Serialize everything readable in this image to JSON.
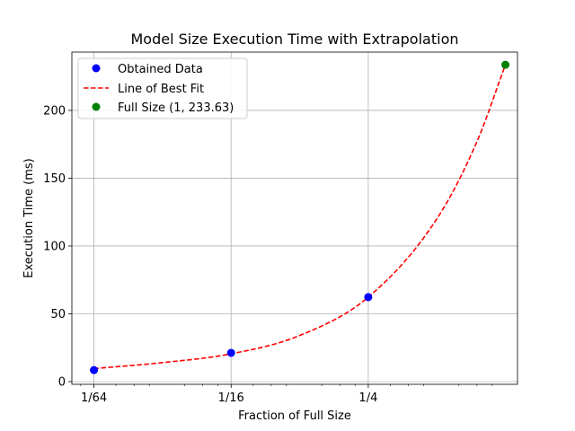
{
  "chart_data": {
    "type": "scatter",
    "title": "Model Size Execution Time with Extrapolation",
    "xlabel": "Fraction of Full Size",
    "ylabel": "Execution Time (ms)",
    "x_scale": "log2",
    "xlim": [
      0.0125,
      1.13
    ],
    "ylim": [
      -2,
      243
    ],
    "grid": true,
    "legend_position": "top-left",
    "xticks": [
      {
        "value": 0.015625,
        "label": "1/64"
      },
      {
        "value": 0.0625,
        "label": "1/16"
      },
      {
        "value": 0.25,
        "label": "1/4"
      }
    ],
    "yticks": [
      {
        "value": 0,
        "label": "0"
      },
      {
        "value": 50,
        "label": "50"
      },
      {
        "value": 100,
        "label": "100"
      },
      {
        "value": 150,
        "label": "150"
      },
      {
        "value": 200,
        "label": "200"
      }
    ],
    "series": [
      {
        "name": "Obtained Data",
        "kind": "scatter",
        "color": "#0000ff",
        "x": [
          0.015625,
          0.0625,
          0.25
        ],
        "y": [
          8.5,
          21.2,
          62.3
        ]
      },
      {
        "name": "Line of Best Fit",
        "kind": "line",
        "style": "dashed",
        "color": "#ff0000",
        "x": [
          0.015625,
          0.03125,
          0.0625,
          0.125,
          0.25,
          0.5,
          0.75,
          1
        ],
        "y": [
          9.6,
          14.0,
          20.5,
          34.0,
          62.3,
          120.0,
          177.0,
          233.63
        ]
      },
      {
        "name": "Full Size (1, 233.63)",
        "kind": "scatter",
        "color": "#008000",
        "x": [
          1
        ],
        "y": [
          233.63
        ]
      }
    ]
  }
}
